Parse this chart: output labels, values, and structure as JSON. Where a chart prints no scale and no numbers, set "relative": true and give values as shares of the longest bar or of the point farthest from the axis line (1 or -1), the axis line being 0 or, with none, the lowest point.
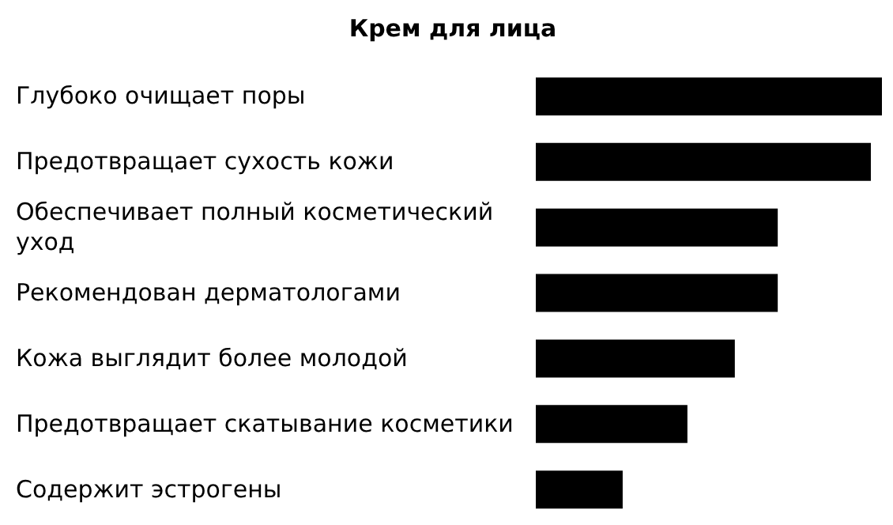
{
  "chart_data": {
    "type": "bar",
    "orientation": "horizontal",
    "relative": true,
    "title": "Крем для лица",
    "categories": [
      "Глубоко очищает поры",
      "Предотвращает сухость кожи",
      "Обеспечивает полный косметический уход",
      "Рекомендован дерматологами",
      "Кожа выглядит более молодой",
      "Предотвращает скатывание косметики",
      "Содержит эстрогены"
    ],
    "values": [
      1,
      0.968,
      0.699,
      0.699,
      0.575,
      0.438,
      0.251
    ],
    "color": "#000000",
    "grid": false,
    "legend": false
  }
}
